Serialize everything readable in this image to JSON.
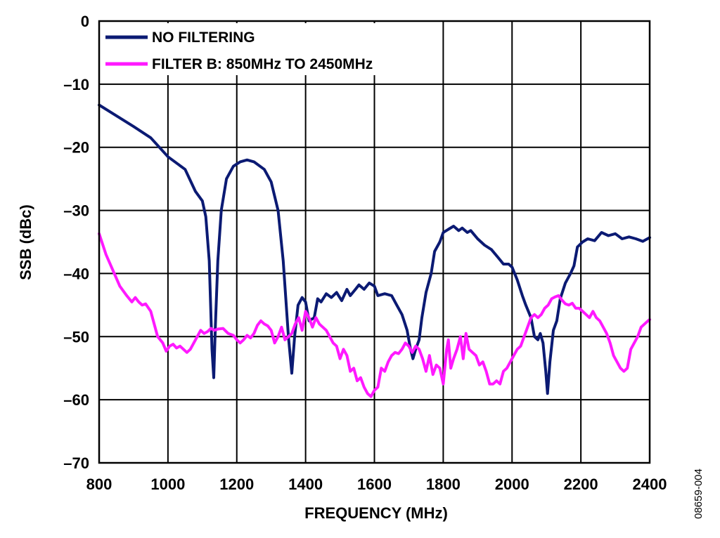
{
  "chart_data": {
    "type": "line",
    "xlabel": "FREQUENCY (MHz)",
    "ylabel": "SSB (dBc)",
    "xlim": [
      800,
      2400
    ],
    "ylim": [
      -70,
      0
    ],
    "xticks": [
      "800",
      "1000",
      "1200",
      "1400",
      "1600",
      "1800",
      "2000",
      "2200",
      "2400"
    ],
    "yticks": [
      "0",
      "–10",
      "–20",
      "–30",
      "–40",
      "–50",
      "–60",
      "–70"
    ],
    "grid": true,
    "legend_position": "top-left",
    "series": [
      {
        "name": "NO FILTERING",
        "color": "#0b1a73",
        "points": [
          [
            800,
            -13.3
          ],
          [
            850,
            -15
          ],
          [
            900,
            -16.7
          ],
          [
            950,
            -18.5
          ],
          [
            1000,
            -21.5
          ],
          [
            1050,
            -23.5
          ],
          [
            1080,
            -27
          ],
          [
            1100,
            -28.5
          ],
          [
            1110,
            -31
          ],
          [
            1120,
            -38
          ],
          [
            1128,
            -52
          ],
          [
            1133,
            -56.5
          ],
          [
            1138,
            -48
          ],
          [
            1145,
            -38
          ],
          [
            1155,
            -30
          ],
          [
            1170,
            -25
          ],
          [
            1190,
            -23
          ],
          [
            1210,
            -22.3
          ],
          [
            1230,
            -22
          ],
          [
            1250,
            -22.3
          ],
          [
            1280,
            -23.5
          ],
          [
            1300,
            -25.5
          ],
          [
            1320,
            -30
          ],
          [
            1335,
            -38
          ],
          [
            1350,
            -50
          ],
          [
            1360,
            -55.8
          ],
          [
            1368,
            -50
          ],
          [
            1378,
            -45
          ],
          [
            1390,
            -43.8
          ],
          [
            1400,
            -44.5
          ],
          [
            1410,
            -47.5
          ],
          [
            1425,
            -47
          ],
          [
            1435,
            -44
          ],
          [
            1445,
            -44.5
          ],
          [
            1460,
            -43.2
          ],
          [
            1475,
            -43.8
          ],
          [
            1490,
            -43
          ],
          [
            1505,
            -44.3
          ],
          [
            1520,
            -42.5
          ],
          [
            1530,
            -43.5
          ],
          [
            1545,
            -42.5
          ],
          [
            1555,
            -41.8
          ],
          [
            1570,
            -42.5
          ],
          [
            1585,
            -41.5
          ],
          [
            1600,
            -42
          ],
          [
            1610,
            -43.5
          ],
          [
            1630,
            -43.2
          ],
          [
            1650,
            -43.5
          ],
          [
            1665,
            -45
          ],
          [
            1680,
            -46.5
          ],
          [
            1695,
            -49
          ],
          [
            1705,
            -52
          ],
          [
            1712,
            -53.5
          ],
          [
            1720,
            -52
          ],
          [
            1730,
            -50.5
          ],
          [
            1738,
            -47
          ],
          [
            1750,
            -43
          ],
          [
            1765,
            -40
          ],
          [
            1775,
            -36.5
          ],
          [
            1790,
            -35
          ],
          [
            1800,
            -33.5
          ],
          [
            1815,
            -33
          ],
          [
            1830,
            -32.5
          ],
          [
            1845,
            -33.2
          ],
          [
            1855,
            -32.8
          ],
          [
            1870,
            -33.5
          ],
          [
            1880,
            -33.2
          ],
          [
            1900,
            -34.5
          ],
          [
            1920,
            -35.5
          ],
          [
            1940,
            -36.2
          ],
          [
            1960,
            -37.5
          ],
          [
            1975,
            -38.5
          ],
          [
            1990,
            -38.5
          ],
          [
            2000,
            -39
          ],
          [
            2015,
            -41
          ],
          [
            2030,
            -43.5
          ],
          [
            2040,
            -45
          ],
          [
            2055,
            -47
          ],
          [
            2065,
            -50
          ],
          [
            2075,
            -50.5
          ],
          [
            2082,
            -49.5
          ],
          [
            2090,
            -51
          ],
          [
            2098,
            -55.5
          ],
          [
            2103,
            -59
          ],
          [
            2110,
            -54
          ],
          [
            2120,
            -49
          ],
          [
            2130,
            -47.5
          ],
          [
            2140,
            -44
          ],
          [
            2155,
            -41.5
          ],
          [
            2170,
            -40
          ],
          [
            2180,
            -38.8
          ],
          [
            2190,
            -35.8
          ],
          [
            2205,
            -35
          ],
          [
            2220,
            -34.5
          ],
          [
            2240,
            -34.8
          ],
          [
            2260,
            -33.5
          ],
          [
            2280,
            -34
          ],
          [
            2300,
            -33.7
          ],
          [
            2320,
            -34.5
          ],
          [
            2340,
            -34.2
          ],
          [
            2360,
            -34.5
          ],
          [
            2380,
            -34.9
          ],
          [
            2400,
            -34.3
          ]
        ]
      },
      {
        "name": "FILTER B: 850MHz TO 2450MHz",
        "color": "#ff19ff",
        "points": [
          [
            800,
            -33.7
          ],
          [
            820,
            -37
          ],
          [
            840,
            -39.5
          ],
          [
            860,
            -42
          ],
          [
            880,
            -43.5
          ],
          [
            895,
            -44.5
          ],
          [
            905,
            -43.8
          ],
          [
            915,
            -44.5
          ],
          [
            925,
            -45
          ],
          [
            935,
            -44.8
          ],
          [
            950,
            -46
          ],
          [
            960,
            -48
          ],
          [
            970,
            -50
          ],
          [
            985,
            -51
          ],
          [
            995,
            -52.3
          ],
          [
            1005,
            -51.5
          ],
          [
            1015,
            -51.2
          ],
          [
            1025,
            -51.8
          ],
          [
            1035,
            -51.5
          ],
          [
            1045,
            -52
          ],
          [
            1055,
            -52.5
          ],
          [
            1065,
            -52
          ],
          [
            1075,
            -51
          ],
          [
            1085,
            -50
          ],
          [
            1095,
            -49
          ],
          [
            1105,
            -49.5
          ],
          [
            1115,
            -49.2
          ],
          [
            1125,
            -48.7
          ],
          [
            1135,
            -49
          ],
          [
            1145,
            -48.8
          ],
          [
            1160,
            -48.7
          ],
          [
            1175,
            -49.5
          ],
          [
            1190,
            -49.8
          ],
          [
            1200,
            -50.5
          ],
          [
            1210,
            -51
          ],
          [
            1220,
            -50.5
          ],
          [
            1230,
            -49.8
          ],
          [
            1240,
            -50.2
          ],
          [
            1250,
            -49.5
          ],
          [
            1260,
            -48.2
          ],
          [
            1270,
            -47.5
          ],
          [
            1280,
            -48
          ],
          [
            1290,
            -48.3
          ],
          [
            1300,
            -49
          ],
          [
            1310,
            -51
          ],
          [
            1320,
            -50
          ],
          [
            1330,
            -48.5
          ],
          [
            1340,
            -50.5
          ],
          [
            1350,
            -50
          ],
          [
            1360,
            -49.5
          ],
          [
            1370,
            -48
          ],
          [
            1380,
            -47
          ],
          [
            1390,
            -49
          ],
          [
            1400,
            -46
          ],
          [
            1410,
            -47
          ],
          [
            1420,
            -48.5
          ],
          [
            1430,
            -47
          ],
          [
            1440,
            -48
          ],
          [
            1450,
            -48.5
          ],
          [
            1460,
            -49
          ],
          [
            1470,
            -50
          ],
          [
            1480,
            -51
          ],
          [
            1490,
            -51.5
          ],
          [
            1500,
            -53.5
          ],
          [
            1510,
            -52
          ],
          [
            1520,
            -53
          ],
          [
            1530,
            -55.5
          ],
          [
            1540,
            -55
          ],
          [
            1550,
            -57
          ],
          [
            1560,
            -56.5
          ],
          [
            1570,
            -58
          ],
          [
            1580,
            -59
          ],
          [
            1590,
            -59.5
          ],
          [
            1600,
            -58.5
          ],
          [
            1610,
            -58
          ],
          [
            1620,
            -55
          ],
          [
            1630,
            -55.5
          ],
          [
            1640,
            -54
          ],
          [
            1650,
            -53
          ],
          [
            1660,
            -52.5
          ],
          [
            1670,
            -52.7
          ],
          [
            1680,
            -52
          ],
          [
            1690,
            -51
          ],
          [
            1700,
            -51.5
          ],
          [
            1710,
            -52.5
          ],
          [
            1720,
            -51.5
          ],
          [
            1730,
            -52
          ],
          [
            1740,
            -53.5
          ],
          [
            1750,
            -55.5
          ],
          [
            1760,
            -53
          ],
          [
            1770,
            -56
          ],
          [
            1780,
            -54.5
          ],
          [
            1790,
            -55
          ],
          [
            1800,
            -57.5
          ],
          [
            1810,
            -52
          ],
          [
            1815,
            -50.5
          ],
          [
            1822,
            -55
          ],
          [
            1830,
            -53.5
          ],
          [
            1840,
            -52
          ],
          [
            1850,
            -50
          ],
          [
            1858,
            -53.5
          ],
          [
            1866,
            -49.5
          ],
          [
            1875,
            -52
          ],
          [
            1885,
            -52.5
          ],
          [
            1895,
            -53
          ],
          [
            1905,
            -54.5
          ],
          [
            1915,
            -54
          ],
          [
            1925,
            -55.5
          ],
          [
            1935,
            -57.5
          ],
          [
            1945,
            -57.5
          ],
          [
            1955,
            -57
          ],
          [
            1965,
            -57.5
          ],
          [
            1975,
            -55.5
          ],
          [
            1985,
            -55
          ],
          [
            1995,
            -54
          ],
          [
            2005,
            -53
          ],
          [
            2015,
            -52
          ],
          [
            2025,
            -51.5
          ],
          [
            2035,
            -50
          ],
          [
            2045,
            -48.5
          ],
          [
            2055,
            -47
          ],
          [
            2065,
            -46.5
          ],
          [
            2075,
            -47
          ],
          [
            2085,
            -46.5
          ],
          [
            2095,
            -45.5
          ],
          [
            2105,
            -45
          ],
          [
            2115,
            -44
          ],
          [
            2125,
            -43.7
          ],
          [
            2135,
            -43.5
          ],
          [
            2145,
            -44.2
          ],
          [
            2155,
            -44.8
          ],
          [
            2165,
            -45
          ],
          [
            2175,
            -44.7
          ],
          [
            2185,
            -45.5
          ],
          [
            2195,
            -45.5
          ],
          [
            2205,
            -46
          ],
          [
            2215,
            -46.5
          ],
          [
            2225,
            -47
          ],
          [
            2235,
            -46
          ],
          [
            2245,
            -47
          ],
          [
            2255,
            -47.5
          ],
          [
            2265,
            -48.5
          ],
          [
            2275,
            -49.5
          ],
          [
            2285,
            -51
          ],
          [
            2295,
            -53
          ],
          [
            2305,
            -54
          ],
          [
            2315,
            -55
          ],
          [
            2325,
            -55.5
          ],
          [
            2335,
            -55
          ],
          [
            2345,
            -52
          ],
          [
            2355,
            -51
          ],
          [
            2365,
            -50
          ],
          [
            2375,
            -48.5
          ],
          [
            2385,
            -48
          ],
          [
            2395,
            -47.5
          ],
          [
            2400,
            -47.3
          ]
        ]
      }
    ]
  },
  "figure_id": "08659-004"
}
